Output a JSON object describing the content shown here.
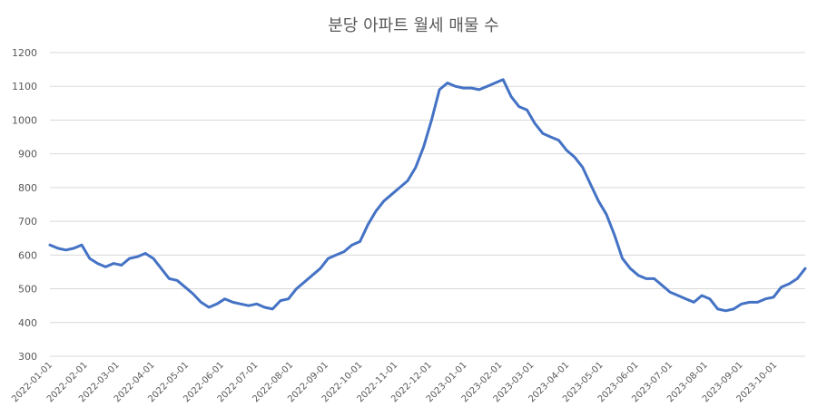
{
  "chart_data": {
    "type": "line",
    "title": "분당 아파트 월세 매물 수",
    "xlabel": "",
    "ylabel": "",
    "ylim": [
      300,
      1200
    ],
    "yticks": [
      300,
      400,
      500,
      600,
      700,
      800,
      900,
      1000,
      1100,
      1200
    ],
    "xticks": [
      "2022-01-01",
      "2022-02-01",
      "2022-03-01",
      "2022-04-01",
      "2022-05-01",
      "2022-06-01",
      "2022-07-01",
      "2022-08-01",
      "2022-09-01",
      "2022-10-01",
      "2022-11-01",
      "2022-12-01",
      "2023-01-01",
      "2023-02-01",
      "2023-03-01",
      "2023-04-01",
      "2023-05-01",
      "2023-06-01",
      "2023-07-01",
      "2023-08-01",
      "2023-09-01",
      "2023-10-01"
    ],
    "xlim": [
      "2022-01-01",
      "2023-10-28"
    ],
    "grid": true,
    "line_color": "#4472c4",
    "series": [
      {
        "x": [
          "2022-01-01",
          "2022-01-08",
          "2022-01-15",
          "2022-01-22",
          "2022-01-29",
          "2022-02-05",
          "2022-02-12",
          "2022-02-19",
          "2022-02-26",
          "2022-03-05",
          "2022-03-12",
          "2022-03-19",
          "2022-03-26",
          "2022-04-02",
          "2022-04-09",
          "2022-04-16",
          "2022-04-23",
          "2022-04-30",
          "2022-05-07",
          "2022-05-14",
          "2022-05-21",
          "2022-05-28",
          "2022-06-04",
          "2022-06-11",
          "2022-06-18",
          "2022-06-25",
          "2022-07-02",
          "2022-07-09",
          "2022-07-16",
          "2022-07-23",
          "2022-07-30",
          "2022-08-06",
          "2022-08-13",
          "2022-08-20",
          "2022-08-27",
          "2022-09-03",
          "2022-09-10",
          "2022-09-17",
          "2022-09-24",
          "2022-10-01",
          "2022-10-08",
          "2022-10-15",
          "2022-10-22",
          "2022-10-29",
          "2022-11-05",
          "2022-11-12",
          "2022-11-19",
          "2022-11-26",
          "2022-12-03",
          "2022-12-10",
          "2022-12-17",
          "2022-12-24",
          "2022-12-31",
          "2023-01-07",
          "2023-01-14",
          "2023-01-21",
          "2023-01-28",
          "2023-02-04",
          "2023-02-11",
          "2023-02-18",
          "2023-02-25",
          "2023-03-04",
          "2023-03-11",
          "2023-03-18",
          "2023-03-25",
          "2023-04-01",
          "2023-04-08",
          "2023-04-15",
          "2023-04-22",
          "2023-04-29",
          "2023-05-06",
          "2023-05-13",
          "2023-05-20",
          "2023-05-27",
          "2023-06-03",
          "2023-06-10",
          "2023-06-17",
          "2023-06-24",
          "2023-07-01",
          "2023-07-08",
          "2023-07-15",
          "2023-07-22",
          "2023-07-29",
          "2023-08-05",
          "2023-08-12",
          "2023-08-19",
          "2023-08-26",
          "2023-09-02",
          "2023-09-09",
          "2023-09-16",
          "2023-09-23",
          "2023-09-30",
          "2023-10-07",
          "2023-10-14",
          "2023-10-21",
          "2023-10-28"
        ],
        "values": [
          630,
          620,
          615,
          620,
          630,
          590,
          575,
          565,
          575,
          570,
          590,
          595,
          605,
          590,
          560,
          530,
          525,
          505,
          485,
          460,
          445,
          455,
          470,
          460,
          455,
          450,
          455,
          445,
          440,
          465,
          470,
          500,
          520,
          540,
          560,
          590,
          600,
          610,
          630,
          640,
          690,
          730,
          760,
          780,
          800,
          820,
          860,
          920,
          1000,
          1090,
          1110,
          1100,
          1095,
          1095,
          1090,
          1100,
          1110,
          1120,
          1070,
          1040,
          1030,
          990,
          960,
          950,
          940,
          910,
          890,
          860,
          810,
          760,
          720,
          660,
          590,
          560,
          540,
          530,
          530,
          510,
          490,
          480,
          470,
          460,
          480,
          470,
          440,
          435,
          440,
          455,
          460,
          460,
          470,
          475,
          505,
          515,
          530,
          560
        ]
      }
    ]
  }
}
